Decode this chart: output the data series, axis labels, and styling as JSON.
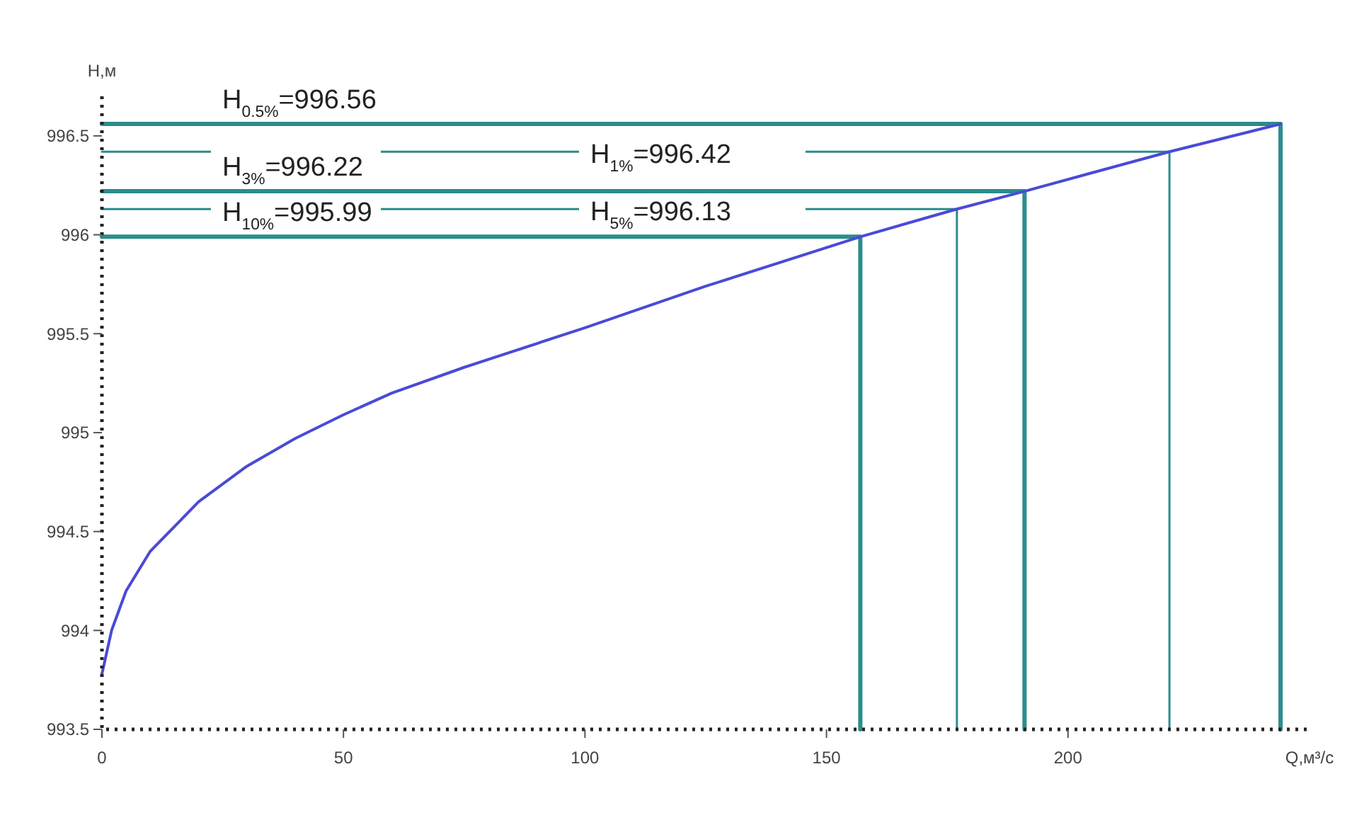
{
  "chart_data": {
    "type": "line",
    "xlabel": "Q,м³/с",
    "ylabel": "H,м",
    "x": [
      0,
      2,
      5,
      10,
      20,
      30,
      40,
      50,
      60,
      75,
      100,
      125,
      157,
      177,
      191,
      221,
      244
    ],
    "series": [
      {
        "color": "#4a4ad6",
        "values": [
          993.78,
          994.0,
          994.2,
          994.4,
          994.65,
          994.83,
          994.97,
          995.09,
          995.2,
          995.33,
          995.53,
          995.74,
          995.99,
          996.13,
          996.22,
          996.42,
          996.56
        ]
      },
      {
        "color": "#2b8c8c",
        "x": [
          0,
          244,
          244
        ],
        "values": [
          996.56,
          996.56,
          993.5
        ]
      },
      {
        "color": "#2b8c8c",
        "x": [
          0,
          221,
          221
        ],
        "values": [
          996.42,
          996.42,
          993.5
        ]
      },
      {
        "color": "#2b8c8c",
        "x": [
          0,
          191,
          191
        ],
        "values": [
          996.22,
          996.22,
          993.5
        ]
      },
      {
        "color": "#2b8c8c",
        "x": [
          0,
          177,
          177
        ],
        "values": [
          996.13,
          996.13,
          993.5
        ]
      },
      {
        "color": "#2b8c8c",
        "x": [
          0,
          157,
          157
        ],
        "values": [
          995.99,
          995.99,
          993.5
        ]
      }
    ],
    "xlim": [
      0,
      250
    ],
    "xticks": [
      0,
      50,
      100,
      150,
      200
    ],
    "ylim": [
      993.5,
      996.7
    ],
    "yticks": [
      993.5,
      994,
      994.5,
      995,
      995.5,
      996,
      996.5
    ],
    "grid": false,
    "marker": "none",
    "line_style": "solid",
    "annotations": [
      "H$_{0.5%}$=996.56",
      "H$_{1%}$=996.42",
      "H$_{3%}$=996.22",
      "H$_{5%}$=996.13",
      "H$_{10%}$=995.99"
    ]
  }
}
